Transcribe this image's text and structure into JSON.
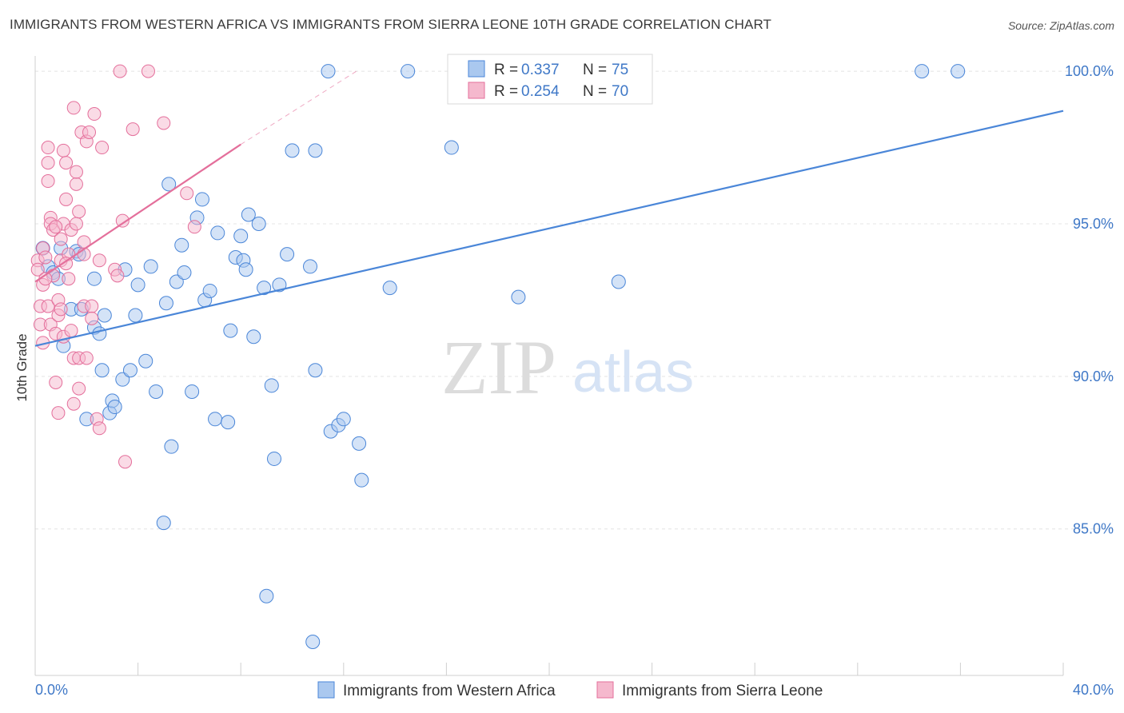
{
  "title": "IMMIGRANTS FROM WESTERN AFRICA VS IMMIGRANTS FROM SIERRA LEONE 10TH GRADE CORRELATION CHART",
  "source": "Source: ZipAtlas.com",
  "watermark": {
    "zip": "ZIP",
    "atlas": "atlas"
  },
  "colors": {
    "blue": "#4a86d8",
    "blue_fill": "#aac8ef",
    "pink": "#e46f9b",
    "pink_fill": "#f5b8cd",
    "tick_label": "#3f78c7",
    "grid": "#e4e4e4"
  },
  "legend_top": [
    {
      "r_label": "R =",
      "r_value": "0.337",
      "n_label": "N =",
      "n_value": "75"
    },
    {
      "r_label": "R =",
      "r_value": "0.254",
      "n_label": "N =",
      "n_value": "70"
    }
  ],
  "chart_data": {
    "type": "scatter",
    "title": "IMMIGRANTS FROM WESTERN AFRICA VS IMMIGRANTS FROM SIERRA LEONE 10TH GRADE CORRELATION CHART",
    "xlabel": "",
    "ylabel": "10th Grade",
    "xlim": [
      0,
      40
    ],
    "ylim": [
      80.2,
      100.5
    ],
    "x_tick_labels": [
      "0.0%",
      "40.0%"
    ],
    "y_ticks": [
      85,
      90,
      95,
      100
    ],
    "y_tick_labels": [
      "85.0%",
      "90.0%",
      "95.0%",
      "100.0%"
    ],
    "grid": true,
    "legend_position": "top-center",
    "series": [
      {
        "name": "Immigrants from Western Africa",
        "color": "#4a86d8",
        "trend": {
          "x": [
            0,
            40
          ],
          "y": [
            91.0,
            98.7
          ],
          "style": "solid"
        },
        "points": [
          [
            0.3,
            94.2
          ],
          [
            0.5,
            93.6
          ],
          [
            0.7,
            93.4
          ],
          [
            1.0,
            94.2
          ],
          [
            0.9,
            93.2
          ],
          [
            1.1,
            91.0
          ],
          [
            1.4,
            92.2
          ],
          [
            1.6,
            94.1
          ],
          [
            1.7,
            94.0
          ],
          [
            2.3,
            93.2
          ],
          [
            2.3,
            91.6
          ],
          [
            2.5,
            91.4
          ],
          [
            2.6,
            90.2
          ],
          [
            2.7,
            92.0
          ],
          [
            2.9,
            88.8
          ],
          [
            3.0,
            89.2
          ],
          [
            3.1,
            89.0
          ],
          [
            3.4,
            89.9
          ],
          [
            3.5,
            93.5
          ],
          [
            3.7,
            90.2
          ],
          [
            3.9,
            92.0
          ],
          [
            4.0,
            93.0
          ],
          [
            4.3,
            90.5
          ],
          [
            4.5,
            93.6
          ],
          [
            4.7,
            89.5
          ],
          [
            5.0,
            85.2
          ],
          [
            5.1,
            92.4
          ],
          [
            5.2,
            96.3
          ],
          [
            5.3,
            87.7
          ],
          [
            5.5,
            93.1
          ],
          [
            5.7,
            94.3
          ],
          [
            5.8,
            93.4
          ],
          [
            6.1,
            89.5
          ],
          [
            6.3,
            95.2
          ],
          [
            6.5,
            95.8
          ],
          [
            6.6,
            92.5
          ],
          [
            6.8,
            92.8
          ],
          [
            7.0,
            88.6
          ],
          [
            7.1,
            94.7
          ],
          [
            7.5,
            88.5
          ],
          [
            7.6,
            91.5
          ],
          [
            7.8,
            93.9
          ],
          [
            8.0,
            94.6
          ],
          [
            8.1,
            93.8
          ],
          [
            8.2,
            93.5
          ],
          [
            8.3,
            95.3
          ],
          [
            8.5,
            91.3
          ],
          [
            8.7,
            95.0
          ],
          [
            8.9,
            92.9
          ],
          [
            9.0,
            82.8
          ],
          [
            9.2,
            89.7
          ],
          [
            9.3,
            87.3
          ],
          [
            9.5,
            93.0
          ],
          [
            9.8,
            94.0
          ],
          [
            10.0,
            97.4
          ],
          [
            10.7,
            93.6
          ],
          [
            10.8,
            81.3
          ],
          [
            10.9,
            97.4
          ],
          [
            10.9,
            90.2
          ],
          [
            11.4,
            100.0
          ],
          [
            11.5,
            88.2
          ],
          [
            11.8,
            88.4
          ],
          [
            12.0,
            88.6
          ],
          [
            12.6,
            87.8
          ],
          [
            12.7,
            86.6
          ],
          [
            13.8,
            92.9
          ],
          [
            14.5,
            100.0
          ],
          [
            16.2,
            97.5
          ],
          [
            16.8,
            100.0
          ],
          [
            18.8,
            92.6
          ],
          [
            22.7,
            93.1
          ],
          [
            34.5,
            100.0
          ],
          [
            35.9,
            100.0
          ],
          [
            1.8,
            92.2
          ],
          [
            2.0,
            88.6
          ]
        ]
      },
      {
        "name": "Immigrants from Sierra Leone",
        "color": "#e46f9b",
        "trend": {
          "x": [
            0,
            8.0
          ],
          "y": [
            93.1,
            97.6
          ],
          "style": "solid",
          "dash_extension_to": [
            12.5,
            100.0
          ]
        },
        "points": [
          [
            0.1,
            93.8
          ],
          [
            0.1,
            93.5
          ],
          [
            0.2,
            92.3
          ],
          [
            0.2,
            91.7
          ],
          [
            0.3,
            93.0
          ],
          [
            0.3,
            94.2
          ],
          [
            0.3,
            91.1
          ],
          [
            0.4,
            93.9
          ],
          [
            0.5,
            97.5
          ],
          [
            0.5,
            97.0
          ],
          [
            0.5,
            96.4
          ],
          [
            0.5,
            92.3
          ],
          [
            0.6,
            91.7
          ],
          [
            0.6,
            95.2
          ],
          [
            0.6,
            95.0
          ],
          [
            0.7,
            94.8
          ],
          [
            0.7,
            93.3
          ],
          [
            0.8,
            91.4
          ],
          [
            0.8,
            89.8
          ],
          [
            0.9,
            88.8
          ],
          [
            0.9,
            92.5
          ],
          [
            0.9,
            92.0
          ],
          [
            1.0,
            94.5
          ],
          [
            1.0,
            93.8
          ],
          [
            1.0,
            92.2
          ],
          [
            1.1,
            97.4
          ],
          [
            1.1,
            95.0
          ],
          [
            1.1,
            91.3
          ],
          [
            1.2,
            97.0
          ],
          [
            1.2,
            95.8
          ],
          [
            1.3,
            94.0
          ],
          [
            1.3,
            93.2
          ],
          [
            1.4,
            94.8
          ],
          [
            1.4,
            91.5
          ],
          [
            1.5,
            89.1
          ],
          [
            1.5,
            90.6
          ],
          [
            1.5,
            98.8
          ],
          [
            1.6,
            96.3
          ],
          [
            1.6,
            96.7
          ],
          [
            1.6,
            95.0
          ],
          [
            1.7,
            95.4
          ],
          [
            1.7,
            90.6
          ],
          [
            1.7,
            89.6
          ],
          [
            1.8,
            98.0
          ],
          [
            1.9,
            92.3
          ],
          [
            1.9,
            94.4
          ],
          [
            2.0,
            90.6
          ],
          [
            2.0,
            97.7
          ],
          [
            2.1,
            98.0
          ],
          [
            2.2,
            92.3
          ],
          [
            2.2,
            91.9
          ],
          [
            2.3,
            98.6
          ],
          [
            2.4,
            88.6
          ],
          [
            2.5,
            88.3
          ],
          [
            2.5,
            93.8
          ],
          [
            2.6,
            97.5
          ],
          [
            3.1,
            93.5
          ],
          [
            3.2,
            93.3
          ],
          [
            3.3,
            100.0
          ],
          [
            3.4,
            95.1
          ],
          [
            3.5,
            87.2
          ],
          [
            3.8,
            98.1
          ],
          [
            4.4,
            100.0
          ],
          [
            5.0,
            98.3
          ],
          [
            5.9,
            96.0
          ],
          [
            6.2,
            94.9
          ],
          [
            0.4,
            93.2
          ],
          [
            1.2,
            93.7
          ],
          [
            0.8,
            94.9
          ],
          [
            1.9,
            94.0
          ]
        ]
      }
    ]
  },
  "bottom_legend": [
    {
      "label": "Immigrants from Western Africa"
    },
    {
      "label": "Immigrants from Sierra Leone"
    }
  ]
}
